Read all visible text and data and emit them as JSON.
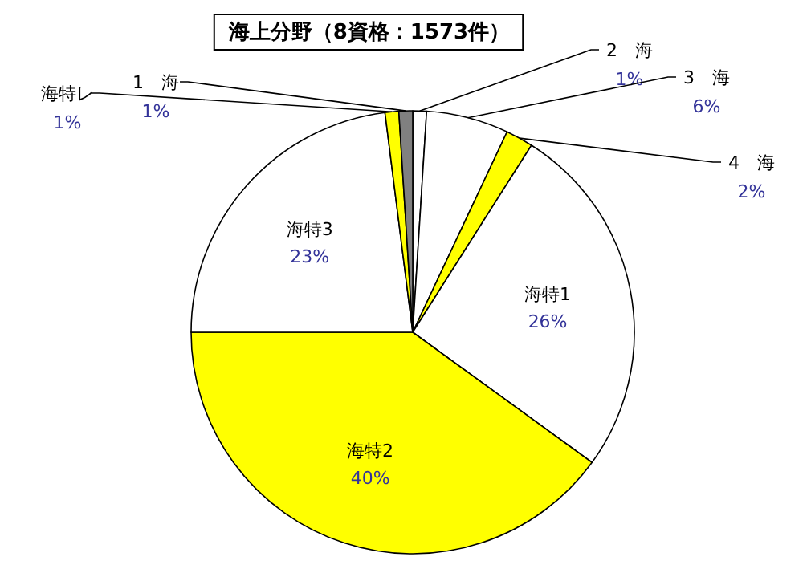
{
  "chart_data": {
    "type": "pie",
    "title": "海上分野（8資格：1573件）",
    "categories": [
      "2　海",
      "3　海",
      "4　海",
      "海特1",
      "海特2",
      "海特3",
      "海特レ",
      "1　海"
    ],
    "values": [
      1,
      6,
      2,
      26,
      40,
      23,
      1,
      1
    ],
    "value_labels": [
      "1%",
      "6%",
      "2%",
      "26%",
      "40%",
      "23%",
      "1%",
      "1%"
    ],
    "colors": [
      "#ffffff",
      "#ffffff",
      "#ffff00",
      "#ffffff",
      "#ffff00",
      "#ffffff",
      "#ffff00",
      "#808080"
    ]
  }
}
